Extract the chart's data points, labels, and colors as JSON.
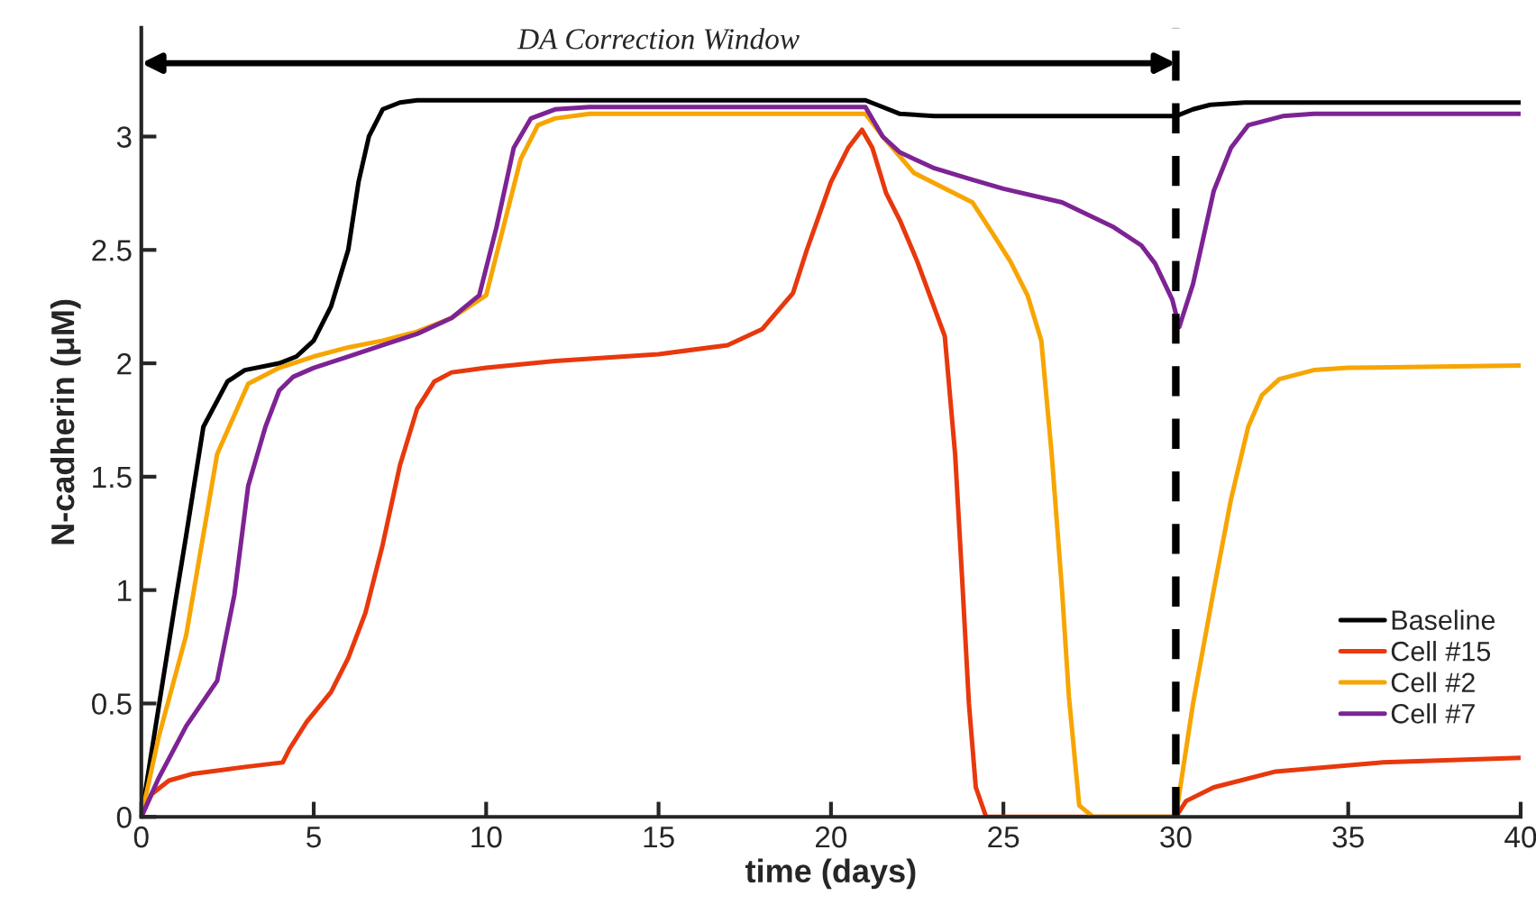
{
  "chart_data": {
    "type": "line",
    "xlabel": "time (days)",
    "ylabel": "N-cadherin (μM)",
    "xlim": [
      0,
      40
    ],
    "xticks": [
      0,
      5,
      10,
      15,
      20,
      25,
      30,
      35,
      40
    ],
    "ylim": [
      0,
      3.48
    ],
    "yticks": [
      0,
      0.5,
      1,
      1.5,
      2,
      2.5,
      3
    ],
    "grid": false,
    "legend": "lower right",
    "line_style": "solid",
    "marker": "none",
    "ref_lines": [
      {
        "axis": "x",
        "value": 30,
        "color": "#000000",
        "line_style": "dashed"
      }
    ],
    "annotations": [
      "DA Correction Window"
    ],
    "series": [
      {
        "name": "Baseline",
        "color": "#000000",
        "x": [
          0,
          0.5,
          1,
          1.3,
          1.8,
          2.5,
          3,
          4,
          4.5,
          5,
          5.5,
          6,
          6.3,
          6.6,
          7,
          7.5,
          8,
          21,
          21.5,
          22,
          23,
          30,
          30.5,
          31,
          32,
          40
        ],
        "values": [
          0,
          0.48,
          0.96,
          1.24,
          1.72,
          1.92,
          1.97,
          2.0,
          2.03,
          2.1,
          2.25,
          2.5,
          2.8,
          3.0,
          3.12,
          3.15,
          3.16,
          3.16,
          3.13,
          3.1,
          3.09,
          3.09,
          3.12,
          3.14,
          3.15,
          3.15
        ]
      },
      {
        "name": "Cell #15",
        "color": "#e8380d",
        "x": [
          0,
          0.3,
          0.8,
          1.5,
          3,
          4.1,
          4.3,
          4.8,
          5.5,
          6,
          6.5,
          7,
          7.5,
          8,
          8.5,
          9,
          10,
          12,
          15,
          17,
          18,
          18.9,
          19.3,
          20,
          20.5,
          20.9,
          21.2,
          21.6,
          22,
          22.5,
          23.3,
          23.6,
          23.8,
          24,
          24.2,
          24.5,
          30,
          30.3,
          31.1,
          32.9,
          36,
          40
        ],
        "values": [
          0,
          0.1,
          0.16,
          0.19,
          0.22,
          0.24,
          0.3,
          0.42,
          0.55,
          0.7,
          0.9,
          1.2,
          1.55,
          1.8,
          1.92,
          1.96,
          1.98,
          2.01,
          2.04,
          2.08,
          2.15,
          2.31,
          2.5,
          2.8,
          2.95,
          3.03,
          2.95,
          2.75,
          2.63,
          2.45,
          2.12,
          1.6,
          1.06,
          0.5,
          0.13,
          0,
          0,
          0.07,
          0.13,
          0.2,
          0.24,
          0.26
        ]
      },
      {
        "name": "Cell #2",
        "color": "#f7a501",
        "x": [
          0,
          0.5,
          1.3,
          2.2,
          3.1,
          4,
          5,
          6,
          7,
          8,
          9,
          10,
          10.5,
          11,
          11.5,
          12,
          13,
          21,
          21.5,
          22.4,
          24.1,
          24.7,
          25.2,
          25.7,
          26.1,
          26.4,
          26.7,
          26.9,
          27.2,
          27.6,
          30,
          30.5,
          31.1,
          31.6,
          32.1,
          32.5,
          33,
          34,
          35,
          40
        ],
        "values": [
          0,
          0.35,
          0.8,
          1.6,
          1.91,
          1.98,
          2.03,
          2.07,
          2.1,
          2.14,
          2.2,
          2.3,
          2.6,
          2.9,
          3.05,
          3.08,
          3.1,
          3.1,
          3.0,
          2.84,
          2.71,
          2.57,
          2.45,
          2.3,
          2.1,
          1.6,
          1.0,
          0.53,
          0.05,
          0,
          0,
          0.5,
          1.0,
          1.4,
          1.72,
          1.86,
          1.93,
          1.97,
          1.98,
          1.99
        ]
      },
      {
        "name": "Cell #7",
        "color": "#7d2394",
        "x": [
          0,
          0.5,
          1.3,
          2.2,
          2.7,
          3.1,
          3.6,
          4,
          4.4,
          5,
          6,
          7,
          8,
          9,
          9.8,
          10.3,
          10.8,
          11.3,
          12,
          13,
          21,
          21.5,
          22,
          23,
          24.1,
          25,
          26.7,
          28.2,
          29,
          29.4,
          29.9,
          30.1,
          30.5,
          31.1,
          31.6,
          32.1,
          33.1,
          34,
          40
        ],
        "values": [
          0,
          0.17,
          0.4,
          0.6,
          0.98,
          1.46,
          1.72,
          1.88,
          1.94,
          1.98,
          2.03,
          2.08,
          2.13,
          2.2,
          2.3,
          2.6,
          2.95,
          3.08,
          3.12,
          3.13,
          3.13,
          3.0,
          2.93,
          2.86,
          2.81,
          2.77,
          2.71,
          2.6,
          2.52,
          2.44,
          2.28,
          2.16,
          2.35,
          2.76,
          2.95,
          3.05,
          3.09,
          3.1,
          3.1
        ]
      }
    ]
  }
}
